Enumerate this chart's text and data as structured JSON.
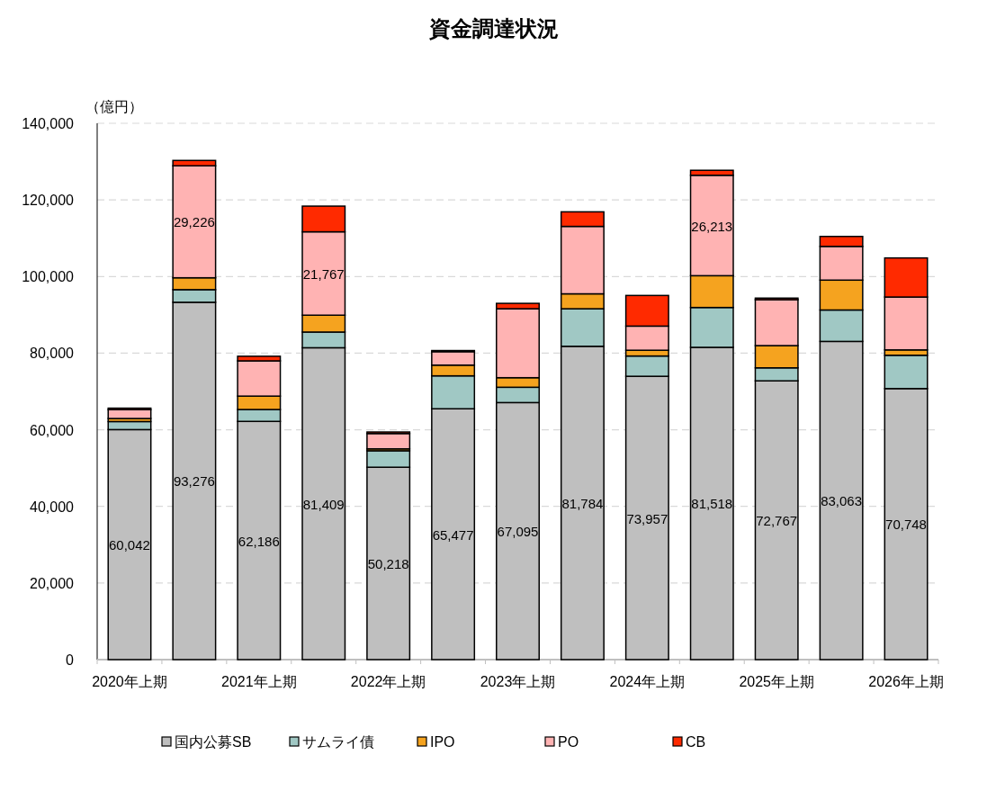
{
  "chart_data": {
    "type": "bar",
    "stacked": true,
    "title": "資金調達状況",
    "ylabel": "（億円）",
    "categories": [
      "2020年上期",
      null,
      "2021年上期",
      null,
      "2022年上期",
      null,
      "2023年上期",
      null,
      "2024年上期",
      null,
      "2025年上期",
      null,
      "2026年上期"
    ],
    "series": [
      {
        "name": "国内公募SB",
        "color": "#bfbfbf",
        "values": [
          60042,
          93276,
          62186,
          81409,
          50218,
          65477,
          67095,
          81784,
          73957,
          81518,
          72767,
          83063,
          70748
        ],
        "value_labels": [
          "60,042",
          "93,276",
          "62,186",
          "81,409",
          "50,218",
          "65,477",
          "67,095",
          "81,784",
          "73,957",
          "81,518",
          "72,767",
          "83,063",
          "70,748"
        ]
      },
      {
        "name": "サムライ債",
        "color": "#a0c8c4",
        "values": [
          2100,
          3300,
          3100,
          4100,
          4300,
          8600,
          4000,
          9800,
          5300,
          10400,
          3400,
          8200,
          8700
        ]
      },
      {
        "name": "IPO",
        "color": "#f5a31f",
        "values": [
          800,
          3100,
          3500,
          4400,
          500,
          2800,
          2500,
          3900,
          1500,
          8300,
          5800,
          7800,
          1400
        ]
      },
      {
        "name": "PO",
        "color": "#ffb3b3",
        "values": [
          2300,
          29226,
          9200,
          21767,
          4000,
          3500,
          18000,
          17600,
          6300,
          26213,
          12000,
          8800,
          13800
        ],
        "value_labels": [
          null,
          "29,226",
          null,
          "21,767",
          null,
          null,
          null,
          null,
          null,
          "26,213",
          null,
          null,
          null
        ]
      },
      {
        "name": "CB",
        "color": "#ff2a00",
        "values": [
          400,
          1400,
          1200,
          6700,
          400,
          300,
          1400,
          3800,
          8000,
          1300,
          400,
          2600,
          10200
        ]
      }
    ],
    "ylim": [
      0,
      140000
    ],
    "yticks": [
      {
        "value": 0,
        "label": "0"
      },
      {
        "value": 20000,
        "label": "20,000"
      },
      {
        "value": 40000,
        "label": "40,000"
      },
      {
        "value": 60000,
        "label": "60,000"
      },
      {
        "value": 80000,
        "label": "80,000"
      },
      {
        "value": 100000,
        "label": "100,000"
      },
      {
        "value": 120000,
        "label": "120,000"
      },
      {
        "value": 140000,
        "label": "140,000"
      }
    ],
    "grid": "y",
    "legend": "bottom"
  }
}
